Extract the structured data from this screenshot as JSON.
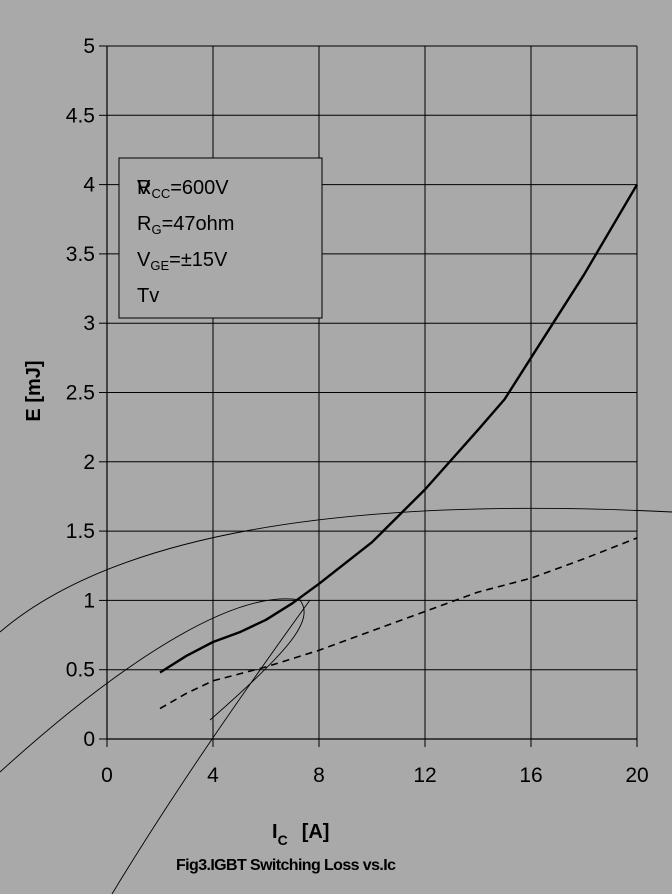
{
  "chart_data": {
    "type": "line",
    "xlabel": "I",
    "xlabel_sub": "C",
    "xlabel_unit": "[A]",
    "ylabel": "E  [mJ]",
    "caption": "Fig3.IGBT Switching Loss vs.Ic",
    "xlim": [
      0,
      20
    ],
    "ylim": [
      0,
      5
    ],
    "x_ticks": [
      "0",
      "4",
      "8",
      "12",
      "16",
      "20"
    ],
    "y_ticks": [
      "0",
      "0.5",
      "1",
      "1.5",
      "2",
      "2.5",
      "3",
      "3.5",
      "4",
      "4.5",
      "5"
    ],
    "grid": true,
    "legend_box": {
      "lines": [
        {
          "main": "R",
          "overlay": "V",
          "sub": "CC",
          "rest": "=600V"
        },
        {
          "main": "R",
          "sub": "G",
          "rest": "=47ohm"
        },
        {
          "main": "V",
          "sub": "GE",
          "rest": "=±15V"
        },
        {
          "main": "Tv",
          "sub": "",
          "rest": ""
        }
      ]
    },
    "series": [
      {
        "style": "solid",
        "x": [
          2,
          3,
          4,
          5,
          6,
          7,
          8,
          10,
          12,
          14,
          15,
          16,
          18,
          20
        ],
        "y": [
          0.48,
          0.6,
          0.7,
          0.77,
          0.86,
          0.98,
          1.12,
          1.42,
          1.8,
          2.23,
          2.45,
          2.75,
          3.35,
          4.0
        ]
      },
      {
        "style": "dashed",
        "x": [
          2,
          3,
          4,
          5,
          6,
          8,
          10,
          12,
          14,
          16,
          18,
          20
        ],
        "y": [
          0.22,
          0.33,
          0.42,
          0.47,
          0.52,
          0.64,
          0.78,
          0.92,
          1.06,
          1.16,
          1.3,
          1.45
        ]
      }
    ]
  }
}
